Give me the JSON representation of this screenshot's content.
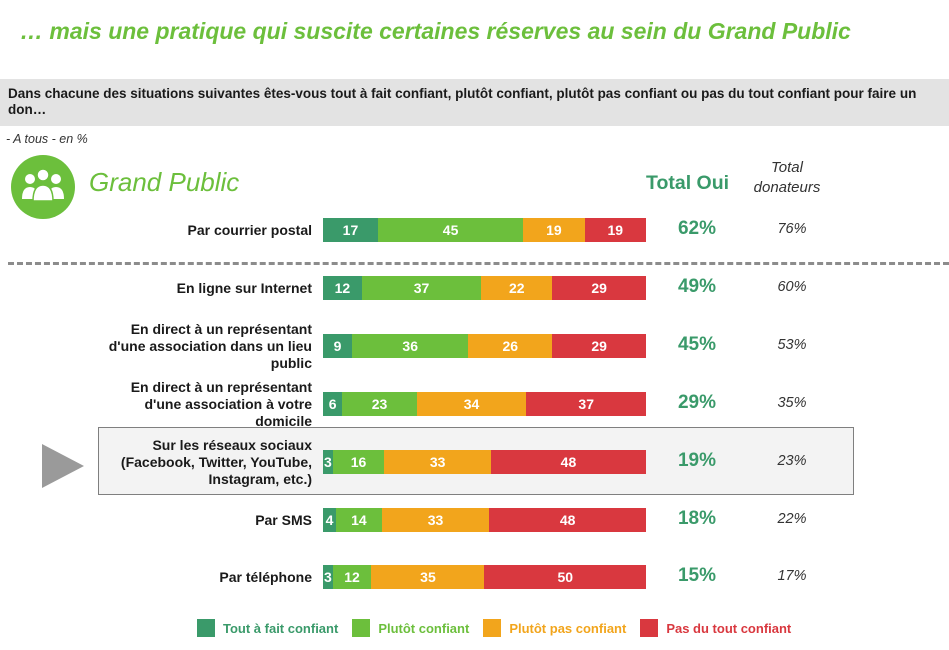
{
  "header": {
    "title": "… mais une pratique qui suscite certaines réserves au sein du Grand Public",
    "question": "Dans chacune des situations suivantes êtes-vous tout à fait confiant, plutôt confiant, plutôt pas confiant ou pas du tout confiant pour faire un don…",
    "base_note": "- A tous - en %"
  },
  "group": {
    "icon": "people-group-icon",
    "label": "Grand Public"
  },
  "columns": {
    "total_oui": "Total Oui",
    "total_donateurs_line1": "Total",
    "total_donateurs_line2": "donateurs"
  },
  "colors": {
    "tout_a_fait": "#3a9a6a",
    "plutot": "#6cbf3c",
    "plutot_pas": "#f2a51c",
    "pas_du_tout": "#d9383f",
    "accent_green": "#6cbf3c"
  },
  "chart_data": {
    "type": "bar",
    "orientation": "horizontal",
    "stacked": true,
    "categories": [
      "Par courrier postal",
      "En ligne sur Internet",
      "En direct à un représentant d'une association dans un lieu public",
      "En direct à un représentant d'une association à votre domicile",
      "Sur les réseaux sociaux (Facebook, Twitter, YouTube, Instagram, etc.)",
      "Par SMS",
      "Par téléphone"
    ],
    "category_lines": [
      [
        "Par courrier postal"
      ],
      [
        "En ligne sur Internet"
      ],
      [
        "En direct à un représentant",
        "d'une association dans un lieu",
        "public"
      ],
      [
        "En direct à un représentant",
        "d'une association à votre",
        "domicile"
      ],
      [
        "Sur les réseaux sociaux",
        "(Facebook, Twitter, YouTube,",
        "Instagram, etc.)"
      ],
      [
        "Par SMS"
      ],
      [
        "Par téléphone"
      ]
    ],
    "series": [
      {
        "name": "Tout à fait confiant",
        "color": "#3a9a6a",
        "values": [
          17,
          12,
          9,
          6,
          3,
          4,
          3
        ]
      },
      {
        "name": "Plutôt confiant",
        "color": "#6cbf3c",
        "values": [
          45,
          37,
          36,
          23,
          16,
          14,
          12
        ]
      },
      {
        "name": "Plutôt pas confiant",
        "color": "#f2a51c",
        "values": [
          19,
          22,
          26,
          34,
          33,
          33,
          35
        ]
      },
      {
        "name": "Pas du tout confiant",
        "color": "#d9383f",
        "values": [
          19,
          29,
          29,
          37,
          48,
          48,
          50
        ]
      }
    ],
    "total_oui": [
      "62%",
      "49%",
      "45%",
      "29%",
      "19%",
      "18%",
      "15%"
    ],
    "total_donateurs": [
      "76%",
      "60%",
      "53%",
      "35%",
      "23%",
      "22%",
      "17%"
    ],
    "highlighted_category": "Sur les réseaux sociaux (Facebook, Twitter, YouTube, Instagram, etc.)",
    "legend_position": "bottom"
  }
}
